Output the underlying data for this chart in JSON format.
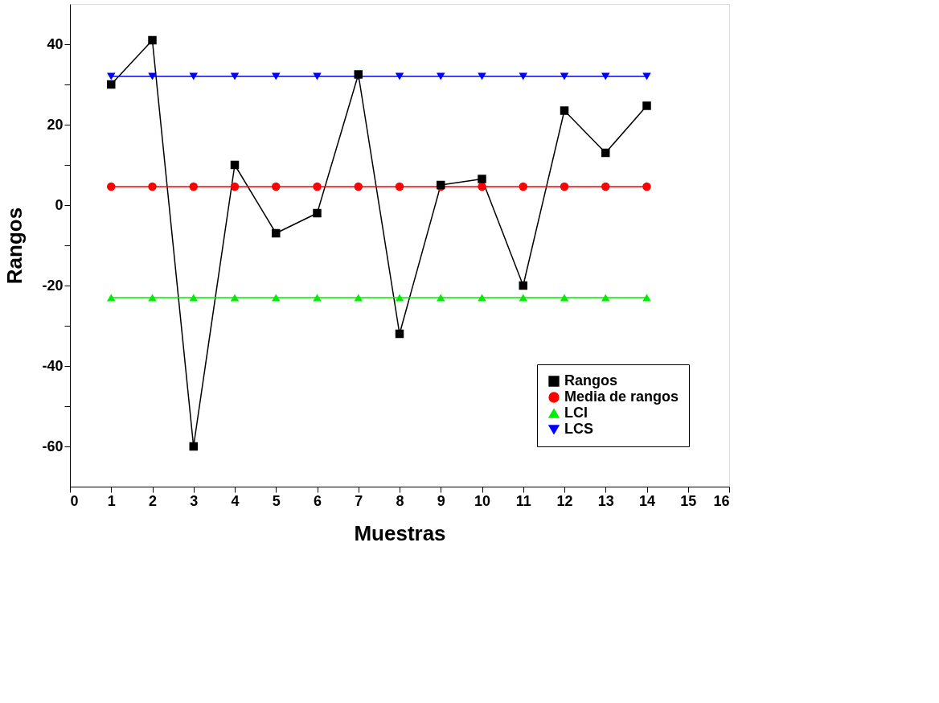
{
  "chart_data": {
    "type": "line",
    "xlabel": "Muestras",
    "ylabel": "Rangos",
    "x": [
      1,
      2,
      3,
      4,
      5,
      6,
      7,
      8,
      9,
      10,
      11,
      12,
      13,
      14
    ],
    "series": [
      {
        "name": "Rangos",
        "color": "#000000",
        "marker": "square",
        "values": [
          30,
          41,
          -60,
          10,
          -7,
          -2,
          32.5,
          -32,
          5,
          6.5,
          -20,
          23.5,
          13,
          24.7
        ]
      },
      {
        "name": "Media de rangos",
        "color": "#ff0000",
        "marker": "circle",
        "values": [
          4.6,
          4.6,
          4.6,
          4.6,
          4.6,
          4.6,
          4.6,
          4.6,
          4.6,
          4.6,
          4.6,
          4.6,
          4.6,
          4.6
        ]
      },
      {
        "name": "LCI",
        "color": "#00ee00",
        "marker": "triangle",
        "values": [
          -23,
          -23,
          -23,
          -23,
          -23,
          -23,
          -23,
          -23,
          -23,
          -23,
          -23,
          -23,
          -23,
          -23
        ]
      },
      {
        "name": "LCS",
        "color": "#0000ff",
        "marker": "triangle_down",
        "values": [
          32,
          32,
          32,
          32,
          32,
          32,
          32,
          32,
          32,
          32,
          32,
          32,
          32,
          32
        ]
      }
    ],
    "xlim": [
      0,
      16
    ],
    "xticks": [
      0,
      1,
      2,
      3,
      4,
      5,
      6,
      7,
      8,
      9,
      10,
      11,
      12,
      13,
      14,
      15,
      16
    ],
    "ylim": [
      -70,
      50
    ],
    "yticks": [
      -60,
      {
        "value": -50,
        "label": null
      },
      -40,
      {
        "value": -30,
        "label": null
      },
      -20,
      {
        "value": -10,
        "label": null
      },
      0,
      {
        "value": 10,
        "label": null
      },
      20,
      {
        "value": 30,
        "label": null
      },
      40
    ],
    "grid": false,
    "legend": "bottom right",
    "line_style": "solid"
  }
}
